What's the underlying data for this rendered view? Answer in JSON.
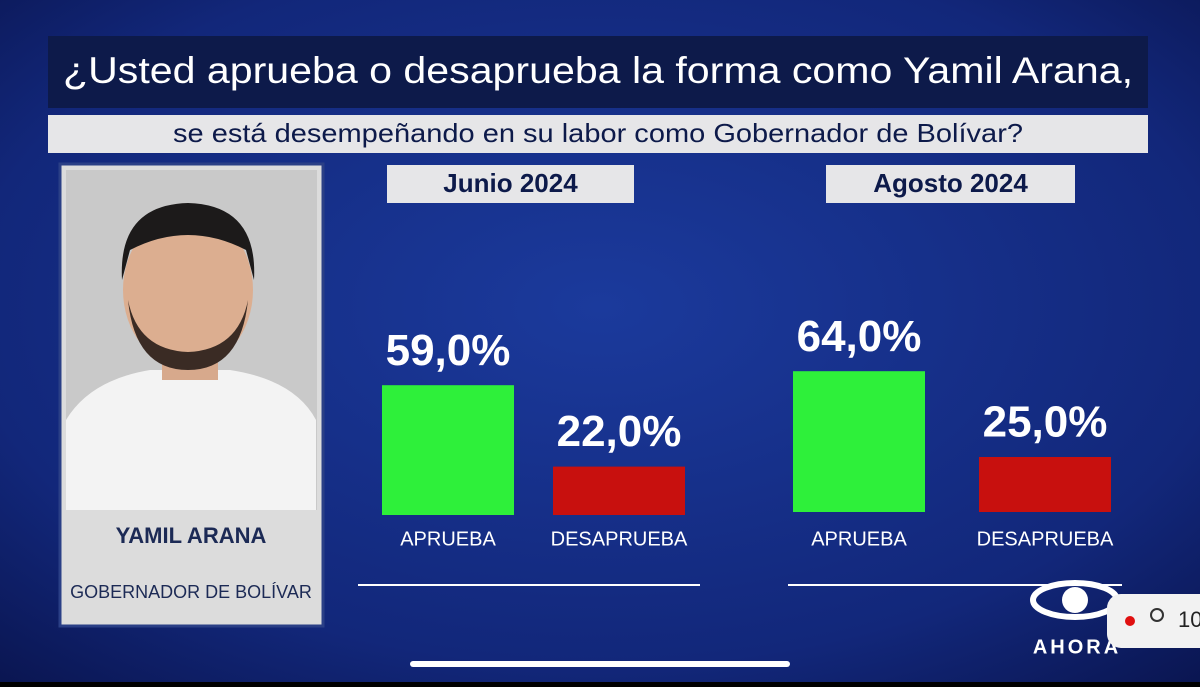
{
  "question": {
    "line1": "¿Usted aprueba o desaprueba la forma como Yamil Arana,",
    "line2": "se está desempeñando en su labor como Gobernador de Bolívar?"
  },
  "person": {
    "name": "YAMIL ARANA",
    "role": "GOBERNADOR DE BOLÍVAR"
  },
  "logo": "AHORA",
  "viewer_count": "10",
  "chart_data": [
    {
      "type": "bar",
      "title": "Junio 2024",
      "categories": [
        "APRUEBA",
        "DESAPRUEBA"
      ],
      "values": [
        59.0,
        22.0
      ],
      "value_labels": [
        "59,0%",
        "22,0%"
      ],
      "colors": [
        "#2ef03a",
        "#c8100e"
      ]
    },
    {
      "type": "bar",
      "title": "Agosto 2024",
      "categories": [
        "APRUEBA",
        "DESAPRUEBA"
      ],
      "values": [
        64.0,
        25.0
      ],
      "value_labels": [
        "64,0%",
        "25,0%"
      ],
      "colors": [
        "#2ef03a",
        "#c8100e"
      ]
    }
  ]
}
